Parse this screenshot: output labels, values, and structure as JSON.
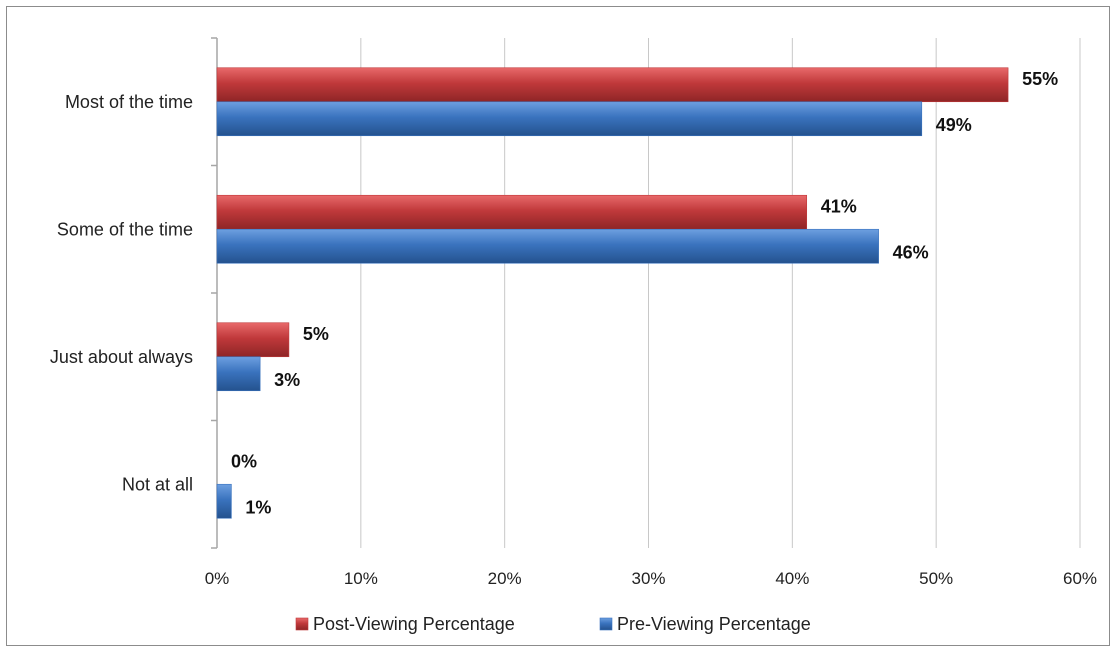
{
  "chart_data": {
    "type": "bar",
    "orientation": "horizontal",
    "categories": [
      "Most of the time",
      "Some of the time",
      "Just about always",
      "Not at all"
    ],
    "series": [
      {
        "name": "Post-Viewing Percentage",
        "values": [
          55,
          41,
          5,
          0
        ],
        "labels": [
          "55%",
          "41%",
          "5%",
          "0%"
        ],
        "color": "#c0393b"
      },
      {
        "name": "Pre-Viewing Percentage",
        "values": [
          49,
          46,
          3,
          1
        ],
        "labels": [
          "49%",
          "46%",
          "3%",
          "1%"
        ],
        "color": "#3a73be"
      }
    ],
    "xlim": [
      0,
      60
    ],
    "xticks": [
      0,
      10,
      20,
      30,
      40,
      50,
      60
    ],
    "xtick_labels": [
      "0%",
      "10%",
      "20%",
      "30%",
      "40%",
      "50%",
      "60%"
    ],
    "grid": true,
    "legend": "bottom"
  }
}
